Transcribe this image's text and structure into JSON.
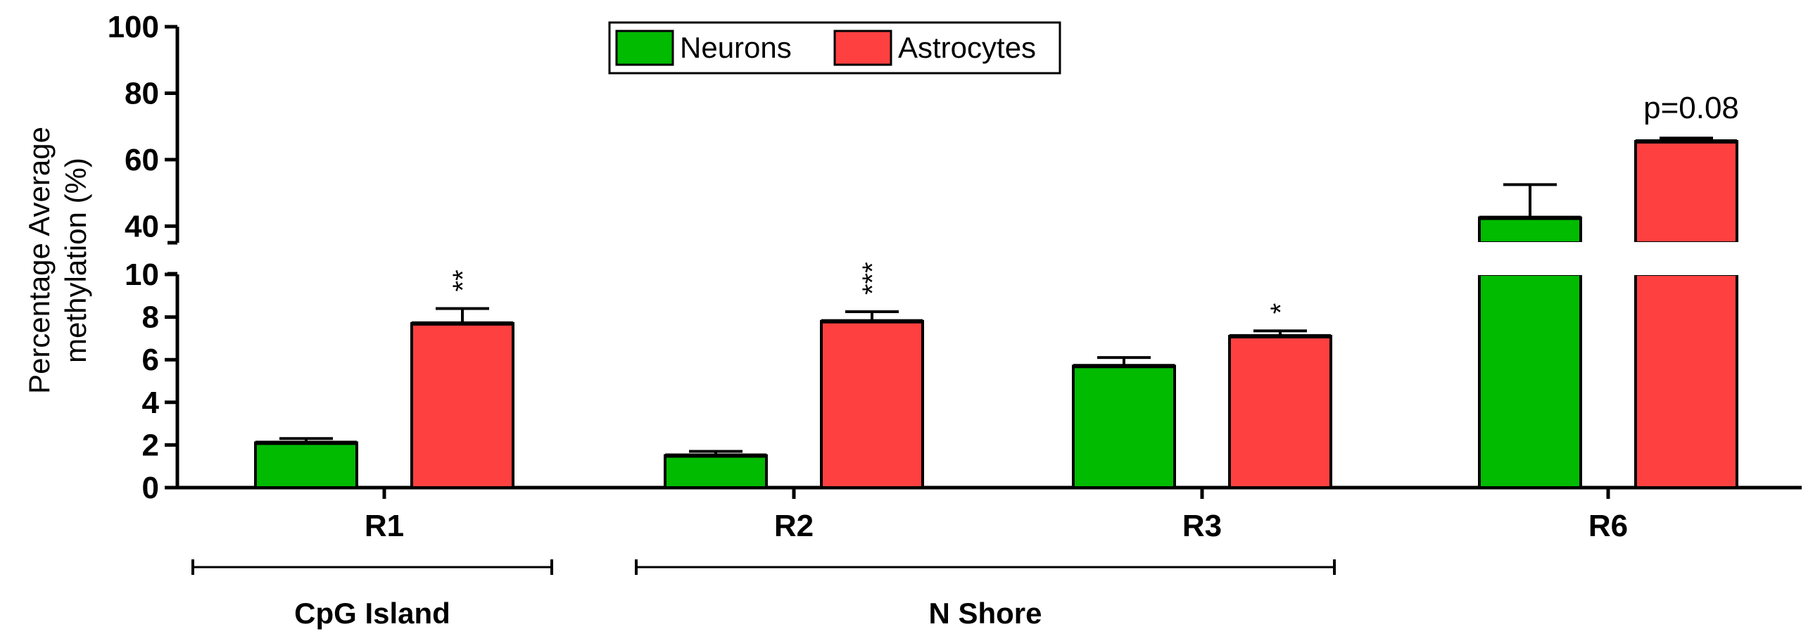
{
  "chart_data": {
    "type": "bar",
    "categories": [
      "R1",
      "R2",
      "R3",
      "R6"
    ],
    "series": [
      {
        "name": "Neurons",
        "color": "#00bb00",
        "values": [
          2.1,
          1.5,
          5.7,
          42.5
        ],
        "errors": [
          0.2,
          0.2,
          0.4,
          10.0
        ]
      },
      {
        "name": "Astrocytes",
        "color": "#ff4040",
        "values": [
          7.7,
          7.8,
          7.1,
          65.5
        ],
        "errors": [
          0.7,
          0.45,
          0.25,
          1.0
        ]
      }
    ],
    "ylabel_lines": [
      "Percentage Average",
      "methylation (%)"
    ],
    "y_axis_lower": {
      "range": [
        0,
        10
      ],
      "ticks": [
        "0",
        "2",
        "4",
        "6",
        "8",
        "10"
      ]
    },
    "y_axis_upper": {
      "range": [
        35,
        100
      ],
      "ticks": [
        "40",
        "60",
        "80",
        "100"
      ]
    },
    "annotations": [
      {
        "category": "R1",
        "series": "Astrocytes",
        "text": "**"
      },
      {
        "category": "R2",
        "series": "Astrocytes",
        "text": "***"
      },
      {
        "category": "R3",
        "series": "Astrocytes",
        "text": "*"
      },
      {
        "category": "R6",
        "series": "Astrocytes",
        "text": "p=0.08"
      }
    ],
    "regions": [
      {
        "label": "CpG Island",
        "categories": [
          "R1"
        ]
      },
      {
        "label": "N Shore",
        "categories": [
          "R2",
          "R3"
        ]
      }
    ],
    "legend_position": "top-center",
    "grid": false
  }
}
